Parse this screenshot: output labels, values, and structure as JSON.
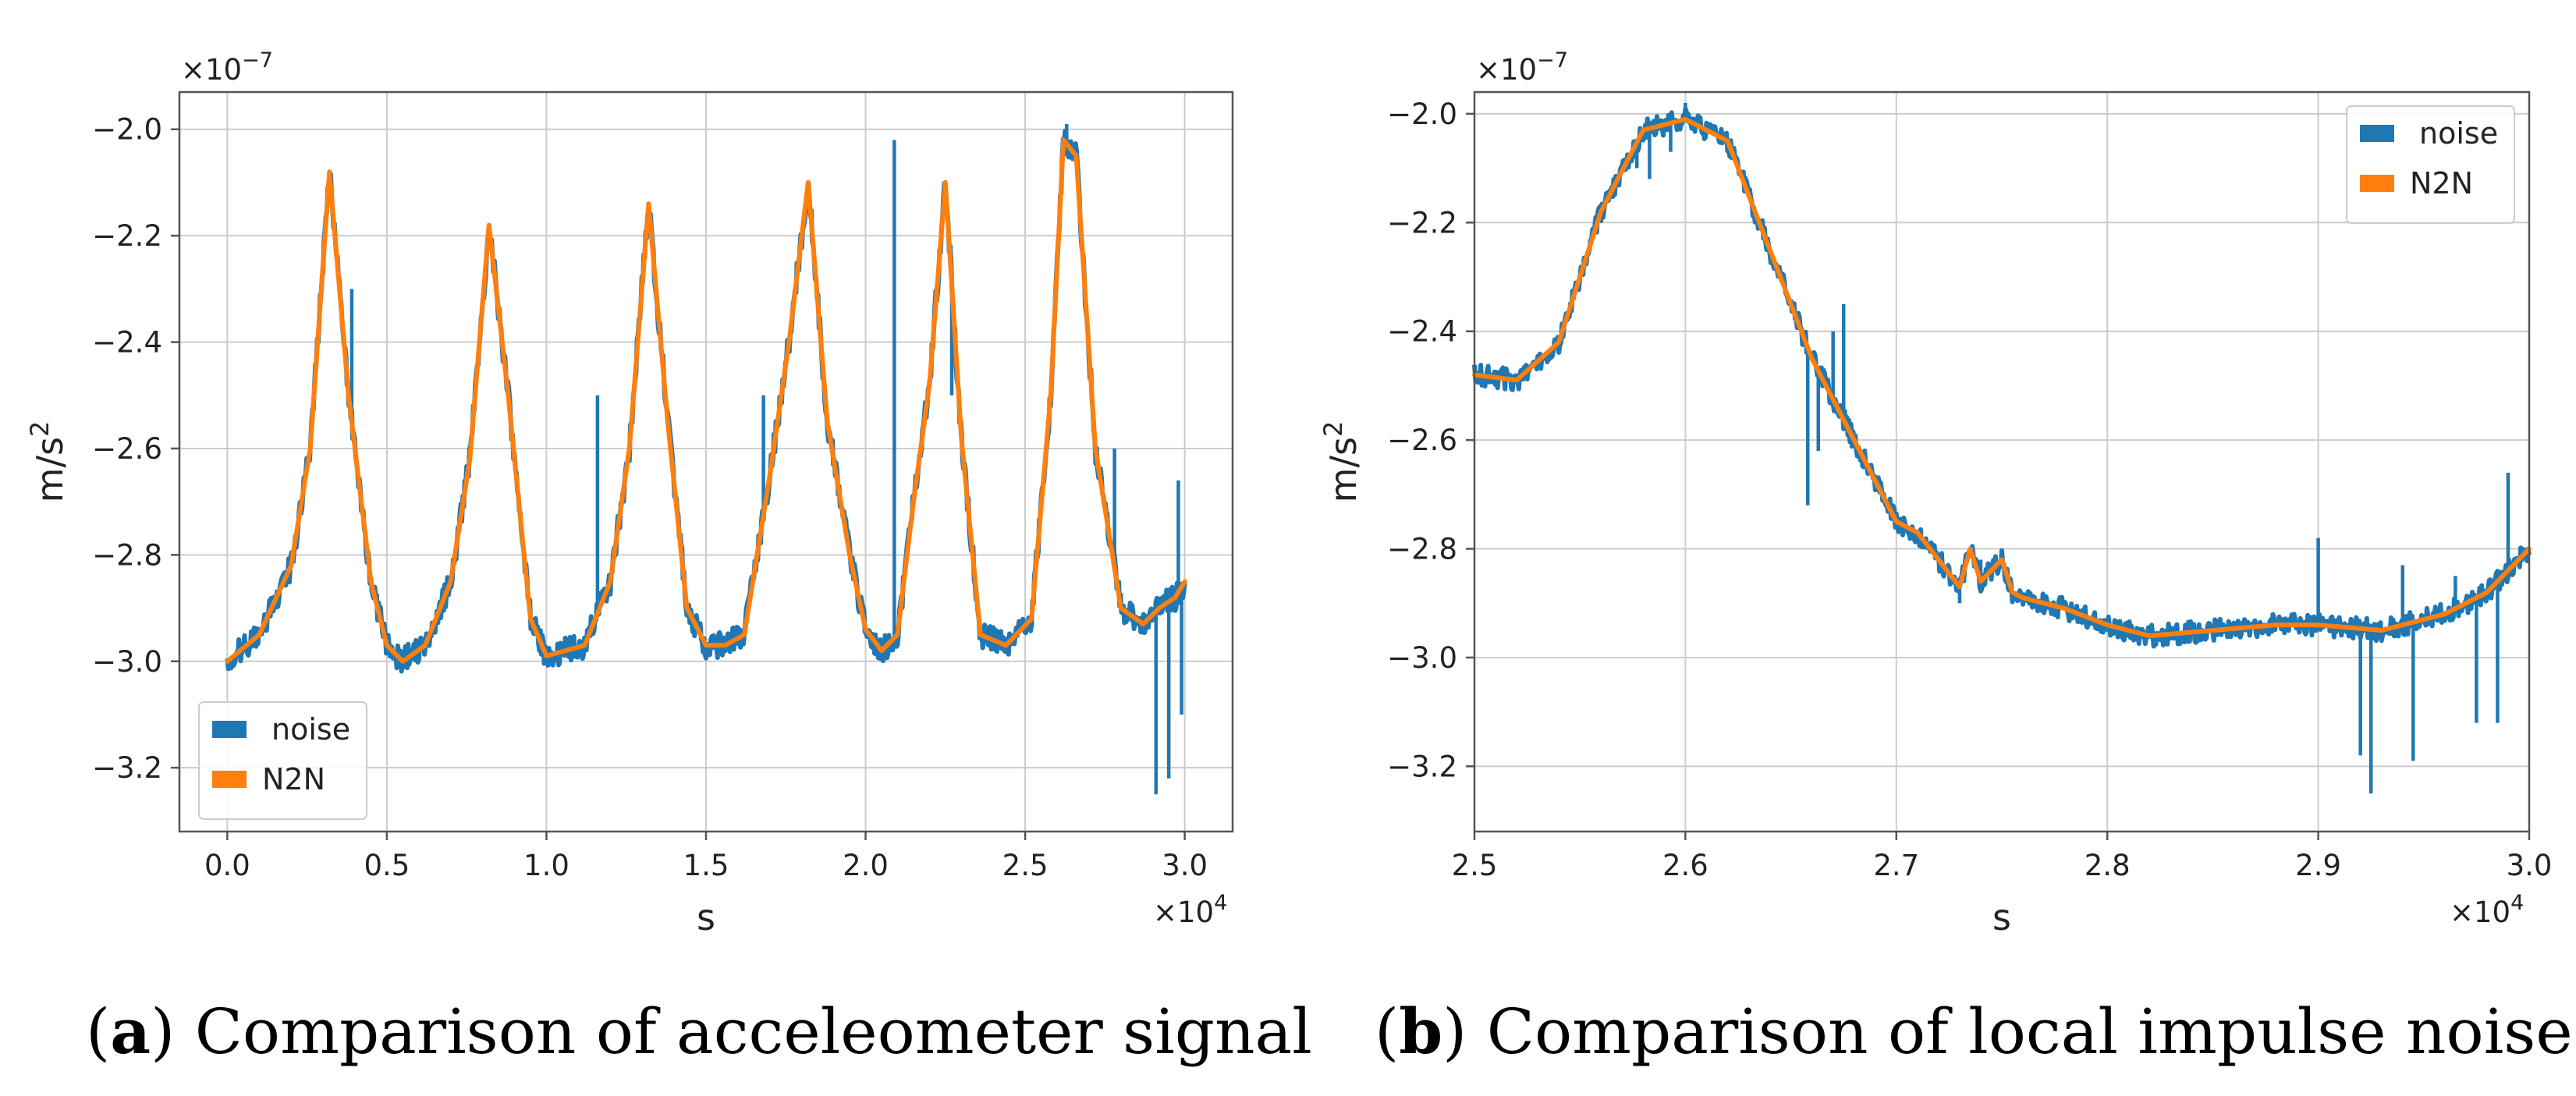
{
  "figure": {
    "colors": {
      "noise": "#1f77b4",
      "n2n": "#ff7f0e",
      "grid": "#cccccc",
      "axes": "#555555"
    }
  },
  "chart_data": [
    {
      "id": "a",
      "type": "line",
      "caption": {
        "letter": "a",
        "text": " Comparison of acceleometer signal"
      },
      "xlabel": "s",
      "ylabel": "m/s",
      "ylabel_sup": "2",
      "x_scale": {
        "base": "×10",
        "exp": "4"
      },
      "y_scale": {
        "base": "×10",
        "exp": "−7"
      },
      "xlim": [
        -0.15,
        3.15
      ],
      "ylim": [
        -3.32,
        -1.93
      ],
      "xticks": [
        0.0,
        0.5,
        1.0,
        1.5,
        2.0,
        2.5,
        3.0
      ],
      "xtick_labels": [
        "0.0",
        "0.5",
        "1.0",
        "1.5",
        "2.0",
        "2.5",
        "3.0"
      ],
      "yticks": [
        -3.2,
        -3.0,
        -2.8,
        -2.6,
        -2.4,
        -2.2,
        -2.0
      ],
      "ytick_labels": [
        "−3.2",
        "−3.0",
        "−2.8",
        "−2.6",
        "−2.4",
        "−2.2",
        "−2.0"
      ],
      "grid": true,
      "legend": {
        "position": "lower-left",
        "entries": [
          "noise",
          "N2N"
        ]
      },
      "series": [
        {
          "name": "N2N",
          "x": [
            0.0,
            0.1,
            0.2,
            0.26,
            0.32,
            0.38,
            0.45,
            0.5,
            0.55,
            0.62,
            0.7,
            0.76,
            0.82,
            0.88,
            0.95,
            1.0,
            1.06,
            1.12,
            1.2,
            1.26,
            1.32,
            1.38,
            1.44,
            1.5,
            1.56,
            1.62,
            1.7,
            1.76,
            1.82,
            1.88,
            1.95,
            2.0,
            2.05,
            2.1,
            2.15,
            2.2,
            2.25,
            2.3,
            2.36,
            2.44,
            2.52,
            2.58,
            2.62,
            2.66,
            2.72,
            2.8,
            2.87,
            2.92,
            2.97,
            3.0
          ],
          "y": [
            -3.0,
            -2.95,
            -2.82,
            -2.6,
            -2.08,
            -2.5,
            -2.85,
            -2.97,
            -3.0,
            -2.97,
            -2.85,
            -2.62,
            -2.18,
            -2.5,
            -2.92,
            -2.99,
            -2.98,
            -2.97,
            -2.85,
            -2.6,
            -2.14,
            -2.55,
            -2.9,
            -2.97,
            -2.97,
            -2.95,
            -2.65,
            -2.4,
            -2.1,
            -2.55,
            -2.8,
            -2.94,
            -2.98,
            -2.95,
            -2.7,
            -2.48,
            -2.1,
            -2.58,
            -2.95,
            -2.97,
            -2.92,
            -2.5,
            -2.02,
            -2.05,
            -2.6,
            -2.9,
            -2.93,
            -2.9,
            -2.88,
            -2.85
          ]
        },
        {
          "name": "noise",
          "noise_amplitude": 0.025,
          "spikes": [
            [
              0.42,
              -2.7
            ],
            [
              0.39,
              -2.3
            ],
            [
              1.16,
              -2.5
            ],
            [
              1.68,
              -2.5
            ],
            [
              2.09,
              -2.02
            ],
            [
              2.27,
              -2.5
            ],
            [
              2.63,
              -1.99
            ],
            [
              2.78,
              -2.6
            ],
            [
              2.82,
              -2.9
            ],
            [
              2.91,
              -3.25
            ],
            [
              2.95,
              -3.22
            ],
            [
              2.98,
              -2.66
            ],
            [
              2.99,
              -3.1
            ]
          ]
        }
      ]
    },
    {
      "id": "b",
      "type": "line",
      "caption": {
        "letter": "b",
        "text": " Comparison of local impulse noise"
      },
      "xlabel": "s",
      "ylabel": "m/s",
      "ylabel_sup": "2",
      "x_scale": {
        "base": "×10",
        "exp": "4"
      },
      "y_scale": {
        "base": "×10",
        "exp": "−7"
      },
      "xlim": [
        2.5,
        3.0
      ],
      "ylim": [
        -3.32,
        -1.96
      ],
      "xticks": [
        2.5,
        2.6,
        2.7,
        2.8,
        2.9,
        3.0
      ],
      "xtick_labels": [
        "2.5",
        "2.6",
        "2.7",
        "2.8",
        "2.9",
        "3.0"
      ],
      "yticks": [
        -3.2,
        -3.0,
        -2.8,
        -2.6,
        -2.4,
        -2.2,
        -2.0
      ],
      "ytick_labels": [
        "−3.2",
        "−3.0",
        "−2.8",
        "−2.6",
        "−2.4",
        "−2.2",
        "−2.0"
      ],
      "grid": true,
      "legend": {
        "position": "upper-right",
        "entries": [
          "noise",
          "N2N"
        ]
      },
      "series": [
        {
          "name": "N2N",
          "x": [
            2.5,
            2.52,
            2.54,
            2.56,
            2.58,
            2.6,
            2.62,
            2.64,
            2.66,
            2.68,
            2.7,
            2.71,
            2.72,
            2.73,
            2.735,
            2.74,
            2.75,
            2.755,
            2.76,
            2.78,
            2.8,
            2.82,
            2.85,
            2.88,
            2.9,
            2.93,
            2.96,
            2.98,
            3.0
          ],
          "y": [
            -2.48,
            -2.49,
            -2.42,
            -2.18,
            -2.03,
            -2.01,
            -2.05,
            -2.25,
            -2.45,
            -2.6,
            -2.75,
            -2.77,
            -2.82,
            -2.87,
            -2.8,
            -2.86,
            -2.82,
            -2.88,
            -2.89,
            -2.91,
            -2.94,
            -2.96,
            -2.95,
            -2.94,
            -2.94,
            -2.95,
            -2.92,
            -2.88,
            -2.8
          ]
        },
        {
          "name": "noise",
          "noise_amplitude": 0.02,
          "spikes": [
            [
              2.577,
              -2.1
            ],
            [
              2.583,
              -2.12
            ],
            [
              2.593,
              -2.07
            ],
            [
              2.6,
              -1.98
            ],
            [
              2.658,
              -2.72
            ],
            [
              2.663,
              -2.62
            ],
            [
              2.67,
              -2.4
            ],
            [
              2.675,
              -2.35
            ],
            [
              2.73,
              -2.9
            ],
            [
              2.74,
              -2.82
            ],
            [
              2.9,
              -2.78
            ],
            [
              2.92,
              -3.18
            ],
            [
              2.925,
              -3.25
            ],
            [
              2.94,
              -2.83
            ],
            [
              2.945,
              -3.19
            ],
            [
              2.965,
              -2.85
            ],
            [
              2.975,
              -3.12
            ],
            [
              2.985,
              -3.12
            ],
            [
              2.99,
              -2.66
            ]
          ]
        }
      ]
    }
  ]
}
